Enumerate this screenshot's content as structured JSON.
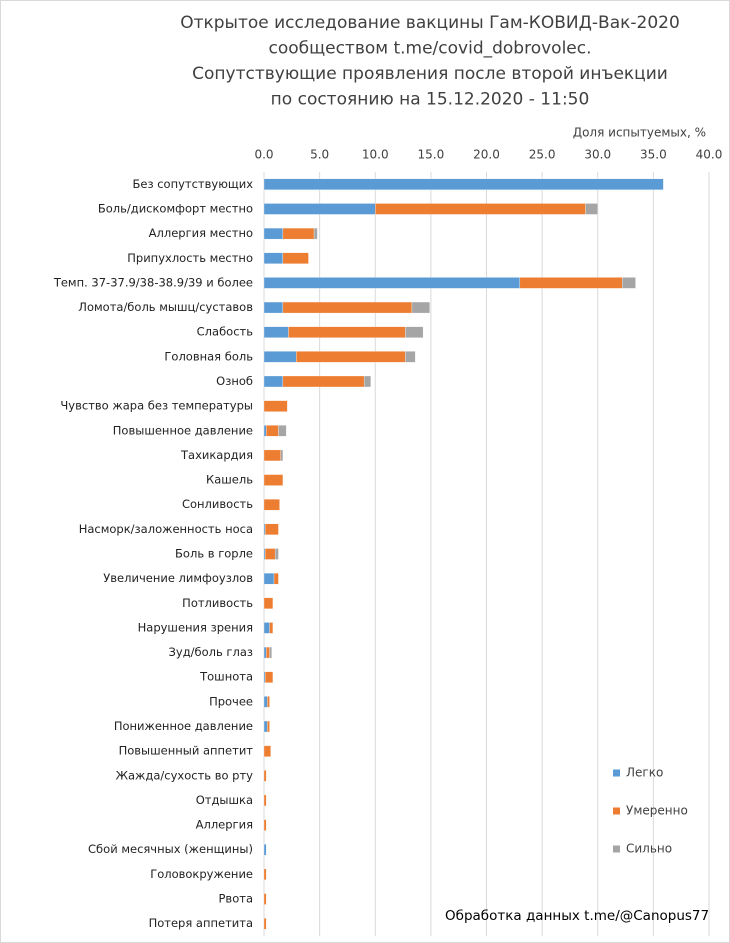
{
  "chart_data": {
    "type": "stacked-barh",
    "title": [
      "Открытое исследование вакцины Гам-КОВИД-Вак-2020",
      "сообществом t.me/covid_dobrovolec.",
      "Сопутствующие проявления после второй инъекции",
      "по состоянию на 15.12.2020 - 11:50"
    ],
    "x_label": "Доля испытуемых, %",
    "note": "Обработка данных t.me/@Canopus77",
    "categories": [
      "Без сопутствующих",
      "Боль/дискомфорт местно",
      "Аллергия местно",
      "Припухлость местно",
      "Темп. 37-37.9/38-38.9/39 и более",
      "Ломота/боль мышц/суставов",
      "Слабость",
      "Головная боль",
      "Озноб",
      "Чувство жара без температуры",
      "Повышенное давление",
      "Тахикардия",
      "Кашель",
      "Сонливость",
      "Насморк/заложенность носа",
      "Боль в горле",
      "Увеличение лимфоузлов",
      "Потливость",
      "Нарушения зрения",
      "Зуд/боль глаз",
      "Тошнота",
      "Прочее",
      "Пониженное давление",
      "Повышенный аппетит",
      "Жажда/сухость во рту",
      "Отдышка",
      "Аллергия",
      "Сбой месячных (женщины)",
      "Головокружение",
      "Рвота",
      "Потеря аппетита"
    ],
    "series": [
      {
        "name": "Легко",
        "color": "#5b9bd5",
        "values": [
          35.9,
          10.0,
          1.7,
          1.7,
          23.0,
          1.7,
          2.2,
          2.9,
          1.7,
          0,
          0.2,
          0,
          0,
          0,
          0.1,
          0.1,
          0.9,
          0,
          0.5,
          0.2,
          0.1,
          0.3,
          0.3,
          0,
          0,
          0,
          0,
          0.2,
          0,
          0,
          0
        ]
      },
      {
        "name": "Умеренно",
        "color": "#ed7d31",
        "values": [
          0,
          18.9,
          2.8,
          2.3,
          9.2,
          11.6,
          10.5,
          9.8,
          7.3,
          2.1,
          1.1,
          1.5,
          1.7,
          1.4,
          1.2,
          0.9,
          0.4,
          0.8,
          0.3,
          0.3,
          0.7,
          0.2,
          0.2,
          0.6,
          0.2,
          0.2,
          0.2,
          0,
          0.2,
          0.2,
          0.2
        ]
      },
      {
        "name": "Сильно",
        "color": "#a5a5a5",
        "values": [
          0,
          1.1,
          0.3,
          0,
          1.2,
          1.6,
          1.6,
          0.9,
          0.6,
          0,
          0.7,
          0.2,
          0,
          0,
          0,
          0.3,
          0,
          0,
          0,
          0.2,
          0,
          0,
          0,
          0,
          0,
          0,
          0,
          0,
          0,
          0,
          0
        ]
      }
    ],
    "xlim": [
      0,
      40
    ],
    "xticks": [
      {
        "value": 0,
        "label": "0.0"
      },
      {
        "value": 5,
        "label": "5.0"
      },
      {
        "value": 10,
        "label": "10.0"
      },
      {
        "value": 15,
        "label": "15.0"
      },
      {
        "value": 20,
        "label": "20.0"
      },
      {
        "value": 25,
        "label": "25.0"
      },
      {
        "value": 30,
        "label": "30.0"
      },
      {
        "value": 35,
        "label": "35.0"
      },
      {
        "value": 40,
        "label": "40.0"
      }
    ],
    "grid": true
  }
}
